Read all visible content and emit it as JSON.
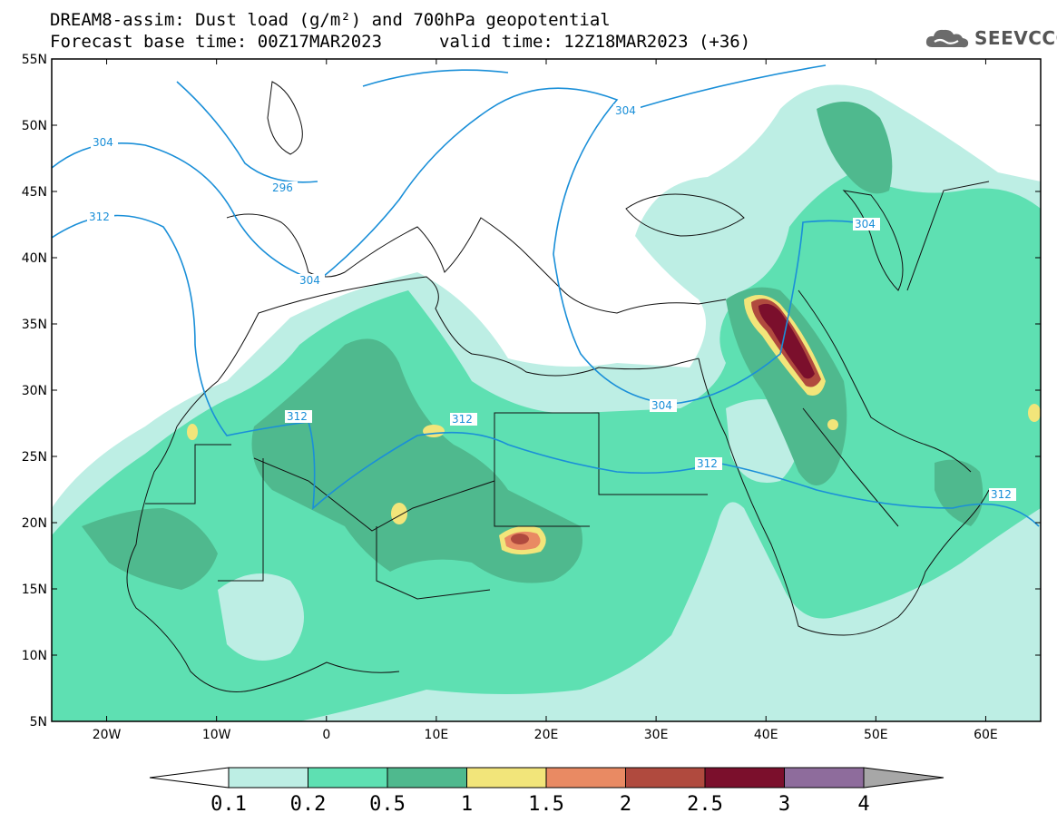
{
  "title": {
    "line1": "DREAM8-assim: Dust load (g/m²) and 700hPa geopotential",
    "line2": "Forecast base time: 00Z17MAR2023",
    "valid": "valid time: 12Z18MAR2023 (+36)"
  },
  "logo": {
    "text": "SEEVCCC",
    "icon": "cloud-icon"
  },
  "map": {
    "lon_range": [
      -25,
      65
    ],
    "lat_range": [
      5,
      55
    ],
    "lat_ticks": [
      "5N",
      "10N",
      "15N",
      "20N",
      "25N",
      "30N",
      "35N",
      "40N",
      "45N",
      "50N",
      "55N"
    ],
    "lon_ticks": [
      "20W",
      "10W",
      "0",
      "10E",
      "20E",
      "30E",
      "40E",
      "50E",
      "60E"
    ],
    "contour_color": "#1a8fd8",
    "contour_labels": [
      "304",
      "296",
      "312",
      "304",
      "304",
      "312",
      "312",
      "304",
      "304",
      "312",
      "312"
    ]
  },
  "colorbar": {
    "tick_labels": [
      "0.1",
      "0.2",
      "0.5",
      "1",
      "1.5",
      "2",
      "2.5",
      "3",
      "4"
    ],
    "colors": [
      "#bdeee4",
      "#5ee0b2",
      "#4fb98e",
      "#f2e57a",
      "#e98a63",
      "#b04a3e",
      "#7b0f2c",
      "#8e6c9c",
      "#a7a7a7"
    ]
  }
}
